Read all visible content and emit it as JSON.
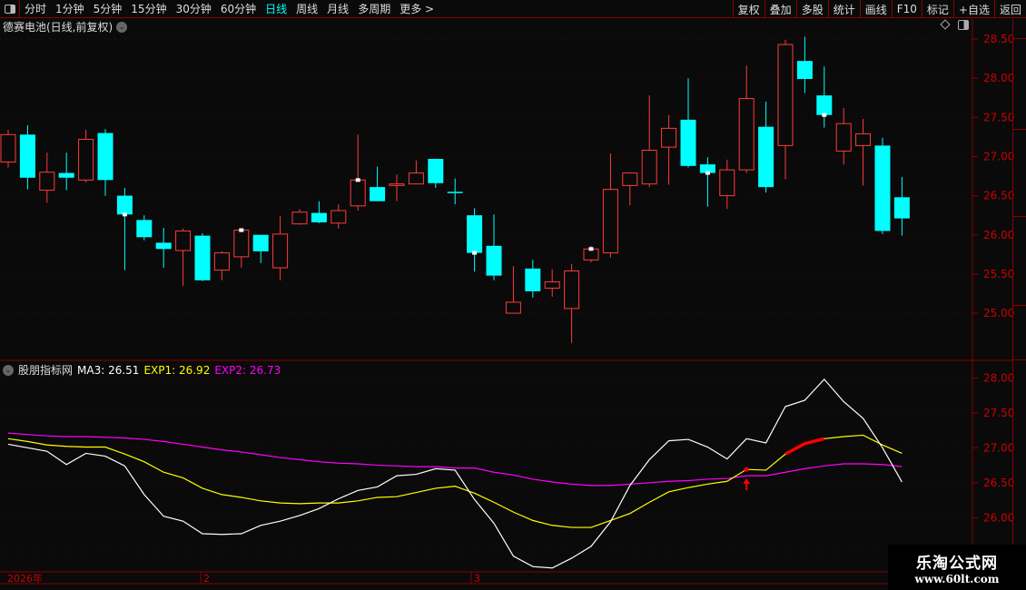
{
  "toolbar": {
    "periods": [
      "分时",
      "1分钟",
      "5分钟",
      "15分钟",
      "30分钟",
      "60分钟",
      "日线",
      "周线",
      "月线",
      "多周期",
      "更多 >"
    ],
    "active_period": "日线",
    "right_buttons": [
      "复权",
      "叠加",
      "多股",
      "统计",
      "画线",
      "F10",
      "标记",
      "+自选",
      "返回"
    ]
  },
  "main": {
    "title": "德赛电池(日线,前复权)",
    "axis_labels": [
      "28.50",
      "28.00",
      "27.50",
      "27.00",
      "26.50",
      "26.00",
      "25.50",
      "25.00"
    ]
  },
  "indicator": {
    "name": "股朋指标网",
    "ma3_label": "MA3: 26.51",
    "exp1_label": "EXP1: 26.92",
    "exp2_label": "EXP2: 26.73",
    "axis_labels": [
      "28.00",
      "27.50",
      "27.00",
      "26.50",
      "26.00"
    ]
  },
  "date_axis": {
    "labels": [
      "2026年",
      "2",
      "3"
    ]
  },
  "watermark": {
    "name": "乐淘公式网",
    "url": "www.60lt.com"
  },
  "colors": {
    "up": "#ff3b3b",
    "down": "#00ffff",
    "ma3": "#ffffff",
    "exp1": "#ffff00",
    "exp2": "#ff00ff",
    "axis": "#cc0000",
    "signal": "#ff0000"
  },
  "chart_data": [
    {
      "type": "candlestick",
      "ylim": [
        24.6,
        28.6
      ],
      "grid": true,
      "candles": [
        [
          26.93,
          27.34,
          26.86,
          27.28
        ],
        [
          27.28,
          27.4,
          26.58,
          26.73
        ],
        [
          26.57,
          27.05,
          26.41,
          26.8
        ],
        [
          26.79,
          27.05,
          26.57,
          26.73
        ],
        [
          26.7,
          27.34,
          26.67,
          27.22
        ],
        [
          27.3,
          27.35,
          26.5,
          26.7
        ],
        [
          26.5,
          26.6,
          25.55,
          26.26
        ],
        [
          26.19,
          26.25,
          25.93,
          25.97
        ],
        [
          25.9,
          26.09,
          25.58,
          25.82
        ],
        [
          25.8,
          26.08,
          25.35,
          26.05
        ],
        [
          25.99,
          26.02,
          25.41,
          25.42
        ],
        [
          25.55,
          25.79,
          25.42,
          25.77
        ],
        [
          25.72,
          26.09,
          25.58,
          26.06
        ],
        [
          26.0,
          26.0,
          25.64,
          25.79
        ],
        [
          25.58,
          26.24,
          25.42,
          26.01
        ],
        [
          26.14,
          26.33,
          26.13,
          26.29
        ],
        [
          26.28,
          26.43,
          26.15,
          26.16
        ],
        [
          26.15,
          26.39,
          26.08,
          26.31
        ],
        [
          26.37,
          27.28,
          26.31,
          26.7
        ],
        [
          26.61,
          26.87,
          26.43,
          26.43
        ],
        [
          26.63,
          26.77,
          26.43,
          26.65
        ],
        [
          26.65,
          26.95,
          26.65,
          26.79
        ],
        [
          26.97,
          26.97,
          26.6,
          26.66
        ],
        [
          26.55,
          26.72,
          26.39,
          26.54
        ],
        [
          26.25,
          26.34,
          25.53,
          25.77
        ],
        [
          25.86,
          26.26,
          25.42,
          25.48
        ],
        [
          25.0,
          25.6,
          25.0,
          25.14
        ],
        [
          25.57,
          25.68,
          25.2,
          25.28
        ],
        [
          25.32,
          25.56,
          25.21,
          25.4
        ],
        [
          25.06,
          25.63,
          24.62,
          25.54
        ],
        [
          25.68,
          25.86,
          25.65,
          25.82
        ],
        [
          25.77,
          27.04,
          25.71,
          26.58
        ],
        [
          26.63,
          26.8,
          26.38,
          26.79
        ],
        [
          26.65,
          27.78,
          26.61,
          27.08
        ],
        [
          27.12,
          27.53,
          26.64,
          27.36
        ],
        [
          27.47,
          28.0,
          26.86,
          26.88
        ],
        [
          26.9,
          26.99,
          26.36,
          26.79
        ],
        [
          26.5,
          26.96,
          26.33,
          26.83
        ],
        [
          26.83,
          28.16,
          26.79,
          27.74
        ],
        [
          27.38,
          27.7,
          26.54,
          26.61
        ],
        [
          27.14,
          28.49,
          26.71,
          28.43
        ],
        [
          28.22,
          28.53,
          27.81,
          27.99
        ],
        [
          27.78,
          28.15,
          27.37,
          27.53
        ],
        [
          27.07,
          27.62,
          26.9,
          27.42
        ],
        [
          27.14,
          27.48,
          26.63,
          27.29
        ],
        [
          27.14,
          27.24,
          26.01,
          26.05
        ],
        [
          26.48,
          26.74,
          25.99,
          26.21
        ]
      ],
      "markers": [
        6,
        12,
        18,
        24,
        30,
        36,
        42
      ]
    },
    {
      "type": "line",
      "ylim": [
        25.2,
        28.2
      ],
      "grid": true,
      "series": [
        {
          "name": "MA3",
          "values": [
            27.05,
            27.0,
            26.95,
            26.76,
            26.92,
            26.88,
            26.74,
            26.33,
            26.02,
            25.95,
            25.77,
            25.76,
            25.77,
            25.89,
            25.95,
            26.03,
            26.13,
            26.27,
            26.39,
            26.44,
            26.6,
            26.62,
            26.7,
            26.68,
            26.26,
            25.92,
            25.45,
            25.3,
            25.28,
            25.42,
            25.59,
            25.94,
            26.46,
            26.83,
            27.1,
            27.12,
            27.01,
            26.84,
            27.13,
            27.07,
            27.59,
            27.68,
            27.98,
            27.66,
            27.42,
            27.0,
            26.51
          ]
        },
        {
          "name": "EXP1",
          "values": [
            27.13,
            27.09,
            27.04,
            27.02,
            27.01,
            27.01,
            26.91,
            26.8,
            26.65,
            26.57,
            26.42,
            26.33,
            26.29,
            26.24,
            26.21,
            26.2,
            26.21,
            26.21,
            26.24,
            26.29,
            26.3,
            26.36,
            26.42,
            26.45,
            26.35,
            26.22,
            26.08,
            25.96,
            25.89,
            25.86,
            25.86,
            25.96,
            26.06,
            26.22,
            26.37,
            26.43,
            26.48,
            26.52,
            26.69,
            26.68,
            26.91,
            27.06,
            27.13,
            27.16,
            27.18,
            27.04,
            26.92
          ]
        },
        {
          "name": "EXP2",
          "values": [
            27.21,
            27.19,
            27.17,
            27.16,
            27.16,
            27.15,
            27.14,
            27.12,
            27.09,
            27.05,
            27.01,
            26.97,
            26.94,
            26.9,
            26.86,
            26.83,
            26.8,
            26.78,
            26.77,
            26.75,
            26.74,
            26.73,
            26.73,
            26.71,
            26.71,
            26.65,
            26.61,
            26.55,
            26.51,
            26.48,
            26.46,
            26.46,
            26.48,
            26.5,
            26.52,
            26.53,
            26.55,
            26.56,
            26.6,
            26.6,
            26.65,
            26.7,
            26.74,
            26.77,
            26.77,
            26.76,
            26.73
          ]
        }
      ],
      "highlight_segment": [
        40,
        42
      ],
      "buy_signal_index": 38
    }
  ]
}
